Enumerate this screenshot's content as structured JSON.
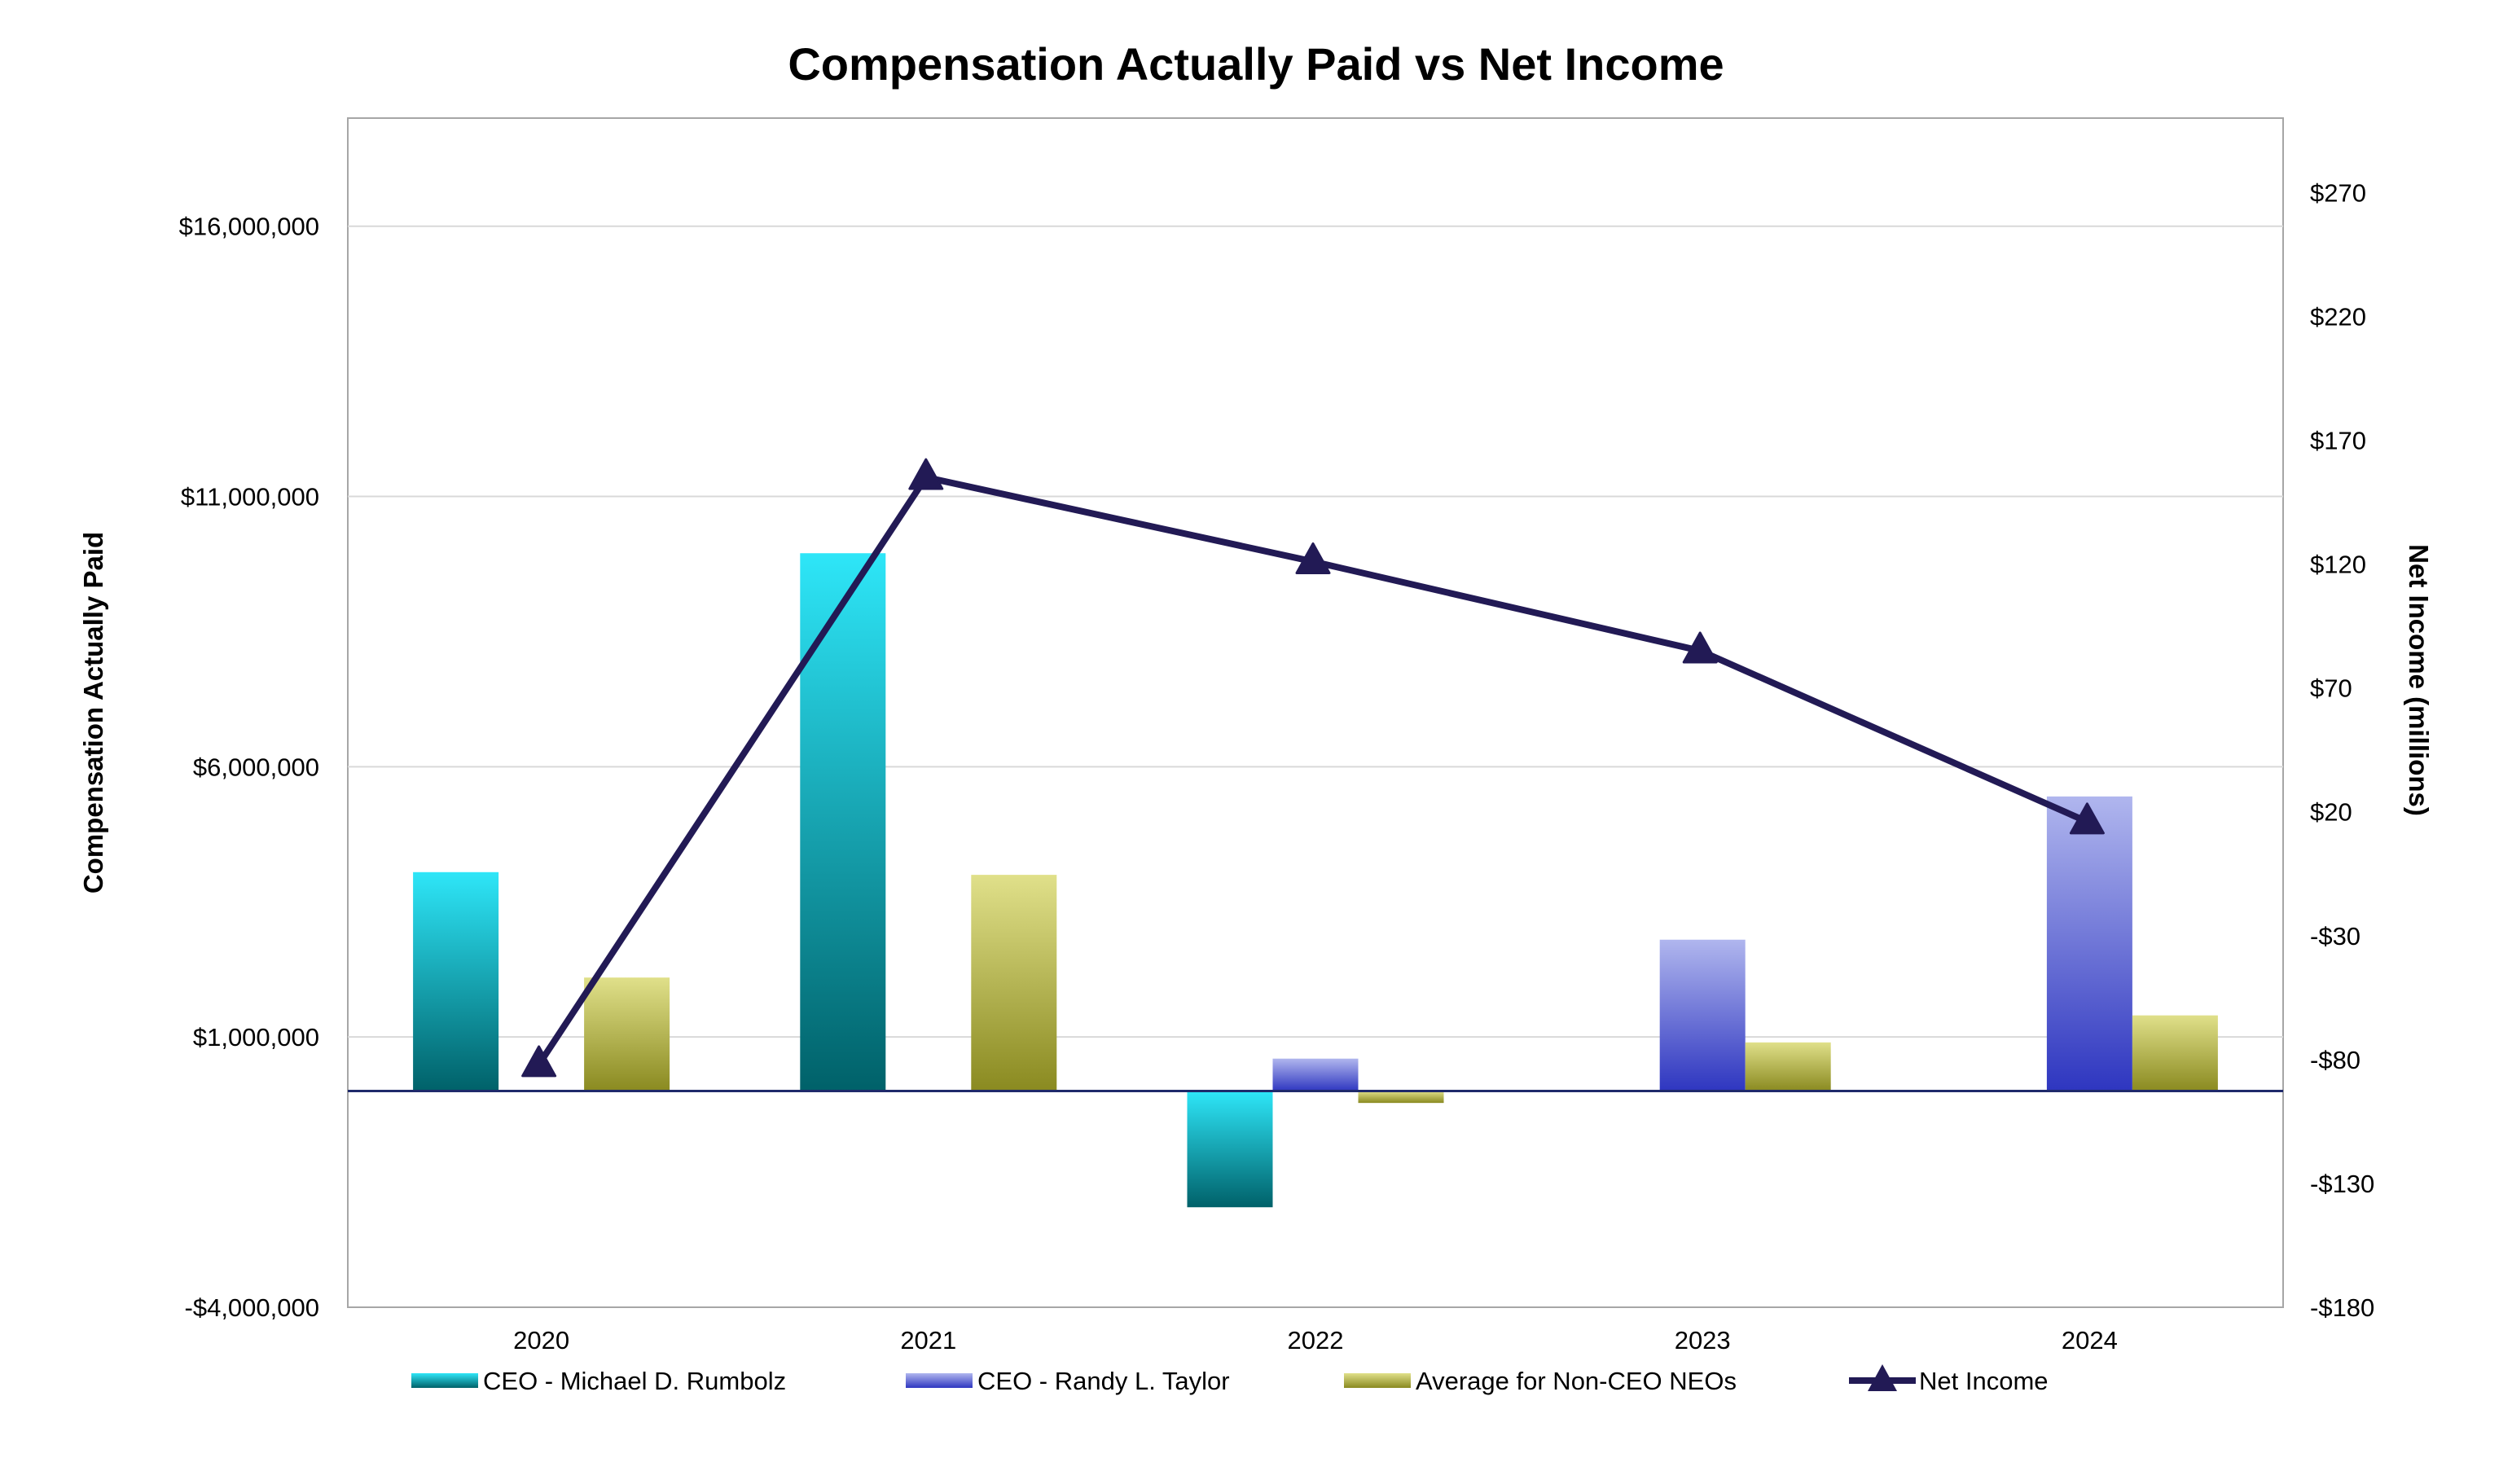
{
  "chart_data": {
    "type": "bar",
    "title": "Compensation Actually Paid vs Net Income",
    "categories": [
      "2020",
      "2021",
      "2022",
      "2023",
      "2024"
    ],
    "ylabel": "Compensation Actually Paid",
    "ylabel_right": "Net Income (millions)",
    "ylim": [
      -4000000,
      18000000
    ],
    "ylim_right": [
      -180,
      300
    ],
    "yticks": [
      {
        "value": -4000000,
        "label": "-$4,000,000"
      },
      {
        "value": 1000000,
        "label": "$1,000,000"
      },
      {
        "value": 6000000,
        "label": "$6,000,000"
      },
      {
        "value": 11000000,
        "label": "$11,000,000"
      },
      {
        "value": 16000000,
        "label": "$16,000,000"
      }
    ],
    "yticks_right": [
      {
        "value": -180,
        "label": "-$180"
      },
      {
        "value": -130,
        "label": "-$130"
      },
      {
        "value": -80,
        "label": "-$80"
      },
      {
        "value": -30,
        "label": "-$30"
      },
      {
        "value": 20,
        "label": "$20"
      },
      {
        "value": 70,
        "label": "$70"
      },
      {
        "value": 120,
        "label": "$120"
      },
      {
        "value": 170,
        "label": "$170"
      },
      {
        "value": 220,
        "label": "$220"
      },
      {
        "value": 270,
        "label": "$270"
      }
    ],
    "grid": true,
    "series": [
      {
        "name": "CEO - Michael D. Rumbolz",
        "type": "bar",
        "axis": "left",
        "color_top": "#2ee6f8",
        "color_bottom": "#006169",
        "values": [
          4050000,
          9950000,
          -2150000,
          null,
          null
        ]
      },
      {
        "name": "CEO - Randy L. Taylor",
        "type": "bar",
        "axis": "left",
        "color_top": "#b0b6ee",
        "color_bottom": "#2e36c0",
        "values": [
          null,
          null,
          600000,
          2800000,
          5450000
        ]
      },
      {
        "name": "Average for Non-CEO NEOs",
        "type": "bar",
        "axis": "left",
        "color_top": "#e0e08a",
        "color_bottom": "#8a8a20",
        "values": [
          2100000,
          4000000,
          -220000,
          900000,
          1400000
        ]
      },
      {
        "name": "Net Income",
        "type": "line",
        "axis": "right",
        "color": "#221a55",
        "marker": "triangle",
        "values": [
          -82,
          155,
          121,
          85,
          16
        ]
      }
    ],
    "legend_position": "bottom"
  }
}
